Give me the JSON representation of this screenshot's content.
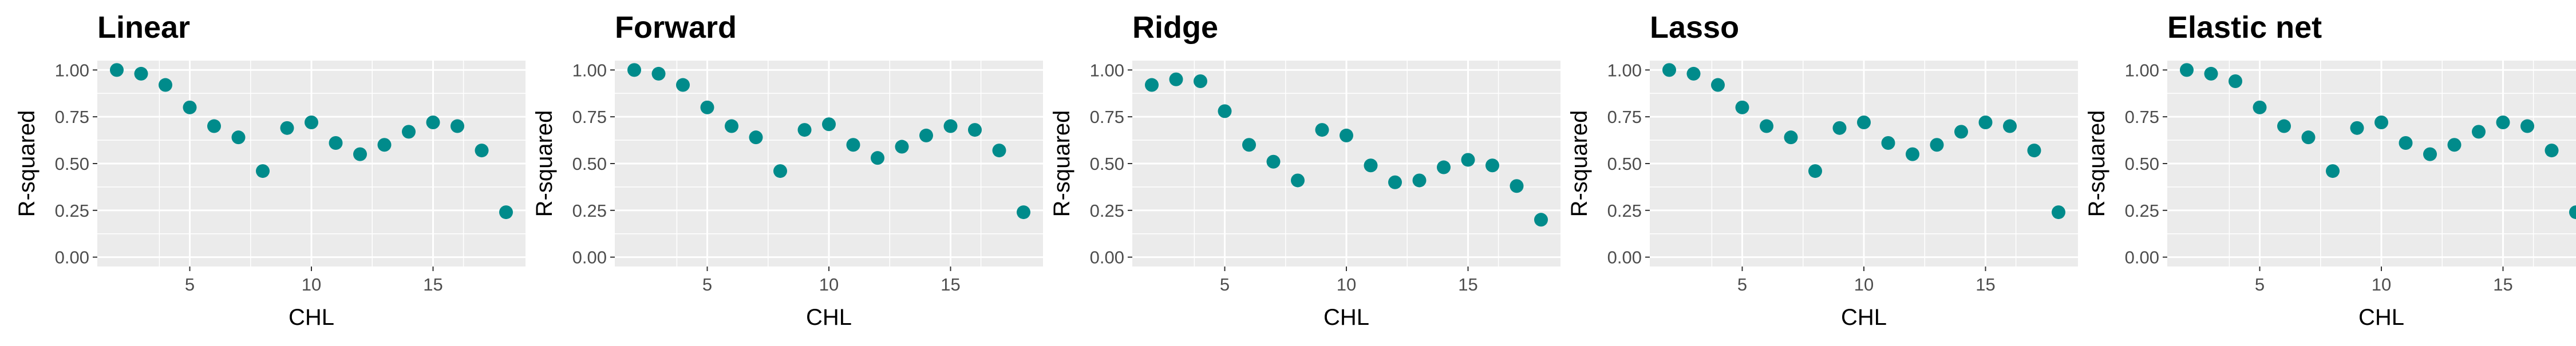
{
  "figure": {
    "point_color": "#008b8b",
    "panel_background": "#ebebeb",
    "grid_color": "#ffffff"
  },
  "chart_data": [
    {
      "type": "scatter",
      "title": "Linear",
      "xlabel": "CHL",
      "ylabel": "R-squared",
      "xlim": [
        1.2,
        18.8
      ],
      "ylim": [
        -0.05,
        1.05
      ],
      "xticks": [
        5,
        10,
        15
      ],
      "xtick_labels": [
        "5",
        "10",
        "15"
      ],
      "yticks": [
        0,
        0.25,
        0.5,
        0.75,
        1
      ],
      "ytick_labels": [
        "0.00",
        "0.25",
        "0.50",
        "0.75",
        "1.00"
      ],
      "grid": true,
      "x": [
        2,
        3,
        4,
        5,
        6,
        7,
        8,
        9,
        10,
        11,
        12,
        13,
        14,
        15,
        16,
        17,
        18
      ],
      "y": [
        1.0,
        0.98,
        0.92,
        0.8,
        0.7,
        0.64,
        0.46,
        0.69,
        0.72,
        0.61,
        0.55,
        0.6,
        0.67,
        0.72,
        0.7,
        0.57,
        0.24
      ]
    },
    {
      "type": "scatter",
      "title": "Forward",
      "xlabel": "CHL",
      "ylabel": "R-squared",
      "xlim": [
        1.2,
        18.8
      ],
      "ylim": [
        -0.05,
        1.05
      ],
      "xticks": [
        5,
        10,
        15
      ],
      "xtick_labels": [
        "5",
        "10",
        "15"
      ],
      "yticks": [
        0,
        0.25,
        0.5,
        0.75,
        1
      ],
      "ytick_labels": [
        "0.00",
        "0.25",
        "0.50",
        "0.75",
        "1.00"
      ],
      "grid": true,
      "x": [
        2,
        3,
        4,
        5,
        6,
        7,
        8,
        9,
        10,
        11,
        12,
        13,
        14,
        15,
        16,
        17,
        18
      ],
      "y": [
        1.0,
        0.98,
        0.92,
        0.8,
        0.7,
        0.64,
        0.46,
        0.68,
        0.71,
        0.6,
        0.53,
        0.59,
        0.65,
        0.7,
        0.68,
        0.57,
        0.24
      ]
    },
    {
      "type": "scatter",
      "title": "Ridge",
      "xlabel": "CHL",
      "ylabel": "R-squared",
      "xlim": [
        1.2,
        18.8
      ],
      "ylim": [
        -0.05,
        1.05
      ],
      "xticks": [
        5,
        10,
        15
      ],
      "xtick_labels": [
        "5",
        "10",
        "15"
      ],
      "yticks": [
        0,
        0.25,
        0.5,
        0.75,
        1
      ],
      "ytick_labels": [
        "0.00",
        "0.25",
        "0.50",
        "0.75",
        "1.00"
      ],
      "grid": true,
      "x": [
        2,
        3,
        4,
        5,
        6,
        7,
        8,
        9,
        10,
        11,
        12,
        13,
        14,
        15,
        16,
        17,
        18
      ],
      "y": [
        0.92,
        0.95,
        0.94,
        0.78,
        0.6,
        0.51,
        0.41,
        0.68,
        0.65,
        0.49,
        0.4,
        0.41,
        0.48,
        0.52,
        0.49,
        0.38,
        0.2
      ]
    },
    {
      "type": "scatter",
      "title": "Lasso",
      "xlabel": "CHL",
      "ylabel": "R-squared",
      "xlim": [
        1.2,
        18.8
      ],
      "ylim": [
        -0.05,
        1.05
      ],
      "xticks": [
        5,
        10,
        15
      ],
      "xtick_labels": [
        "5",
        "10",
        "15"
      ],
      "yticks": [
        0,
        0.25,
        0.5,
        0.75,
        1
      ],
      "ytick_labels": [
        "0.00",
        "0.25",
        "0.50",
        "0.75",
        "1.00"
      ],
      "grid": true,
      "x": [
        2,
        3,
        4,
        5,
        6,
        7,
        8,
        9,
        10,
        11,
        12,
        13,
        14,
        15,
        16,
        17,
        18
      ],
      "y": [
        1.0,
        0.98,
        0.92,
        0.8,
        0.7,
        0.64,
        0.46,
        0.69,
        0.72,
        0.61,
        0.55,
        0.6,
        0.67,
        0.72,
        0.7,
        0.57,
        0.24
      ]
    },
    {
      "type": "scatter",
      "title": "Elastic net",
      "xlabel": "CHL",
      "ylabel": "R-squared",
      "xlim": [
        1.2,
        18.8
      ],
      "ylim": [
        -0.05,
        1.05
      ],
      "xticks": [
        5,
        10,
        15
      ],
      "xtick_labels": [
        "5",
        "10",
        "15"
      ],
      "yticks": [
        0,
        0.25,
        0.5,
        0.75,
        1
      ],
      "ytick_labels": [
        "0.00",
        "0.25",
        "0.50",
        "0.75",
        "1.00"
      ],
      "grid": true,
      "x": [
        2,
        3,
        4,
        5,
        6,
        7,
        8,
        9,
        10,
        11,
        12,
        13,
        14,
        15,
        16,
        17,
        18
      ],
      "y": [
        1.0,
        0.98,
        0.94,
        0.8,
        0.7,
        0.64,
        0.46,
        0.69,
        0.72,
        0.61,
        0.55,
        0.6,
        0.67,
        0.72,
        0.7,
        0.57,
        0.24
      ]
    }
  ]
}
